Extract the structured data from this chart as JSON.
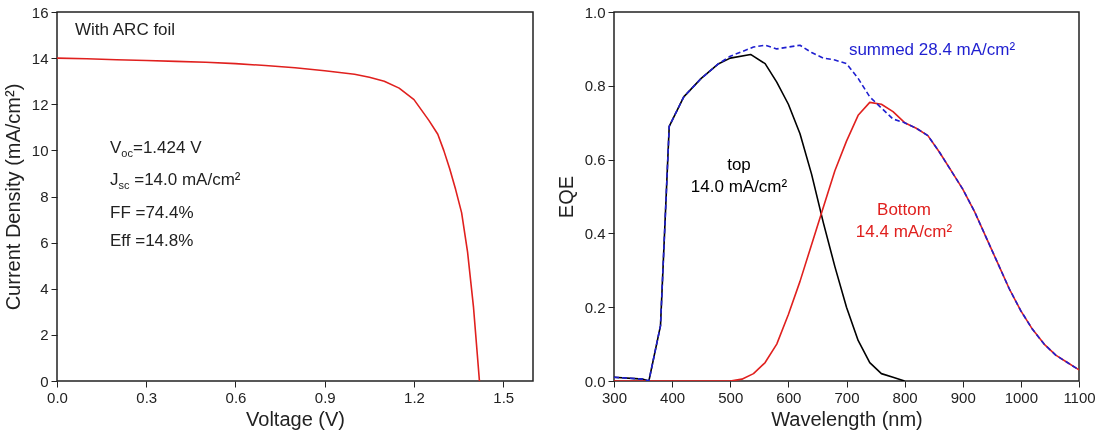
{
  "chart_data": [
    {
      "type": "line",
      "xlabel": "Voltage (V)",
      "ylabel": "Current Density (mA/cm²)",
      "xlim": [
        0,
        1.6
      ],
      "ylim": [
        0,
        16
      ],
      "xticks": [
        {
          "value": 0,
          "label": "0.0"
        },
        0.3,
        0.6,
        0.9,
        1.2,
        1.5
      ],
      "yticks": [
        0,
        2,
        4,
        6,
        8,
        10,
        12,
        14,
        16
      ],
      "annotations": [
        "With ARC foil",
        "V$_{oc}$=1.424 V",
        "J$_{sc}$ =14.0 mA/cm²",
        "FF =74.4%",
        "Eff =14.8%"
      ],
      "series": [
        {
          "color": "#e0201e",
          "x": [
            0,
            0.1,
            0.2,
            0.3,
            0.4,
            0.5,
            0.6,
            0.7,
            0.8,
            0.9,
            1.0,
            1.05,
            1.1,
            1.15,
            1.2,
            1.25,
            1.28,
            1.3,
            1.32,
            1.34,
            1.36,
            1.38,
            1.4,
            1.42
          ],
          "values": [
            14.0,
            13.97,
            13.93,
            13.9,
            13.86,
            13.82,
            13.76,
            13.68,
            13.58,
            13.45,
            13.3,
            13.17,
            13.0,
            12.7,
            12.2,
            11.3,
            10.7,
            10.0,
            9.2,
            8.3,
            7.3,
            5.6,
            3.2,
            0
          ]
        }
      ]
    },
    {
      "type": "line",
      "xlabel": "Wavelength (nm)",
      "ylabel": "EQE",
      "xlim": [
        300,
        1100
      ],
      "ylim": [
        0,
        1
      ],
      "xticks": [
        300,
        400,
        500,
        600,
        700,
        800,
        900,
        1000,
        1100
      ],
      "yticks": [
        {
          "value": 0,
          "label": "0.0"
        },
        0.2,
        0.4,
        0.6,
        0.8,
        {
          "value": 1,
          "label": "1.0"
        }
      ],
      "series": [
        {
          "name": "top\n14.0 mA/cm²",
          "color": "#000000",
          "x": [
            300,
            350,
            360,
            380,
            395,
            420,
            450,
            480,
            500,
            535,
            560,
            580,
            600,
            620,
            640,
            660,
            680,
            700,
            720,
            740,
            760,
            780,
            800
          ],
          "values": [
            0.01,
            0.005,
            0,
            0.15,
            0.69,
            0.77,
            0.82,
            0.86,
            0.875,
            0.885,
            0.86,
            0.81,
            0.75,
            0.67,
            0.56,
            0.43,
            0.31,
            0.2,
            0.11,
            0.05,
            0.02,
            0.01,
            0
          ]
        },
        {
          "name": "Bottom\n14.4 mA/cm²",
          "color": "#e0201e",
          "x": [
            300,
            500,
            520,
            540,
            560,
            580,
            600,
            620,
            640,
            660,
            680,
            700,
            720,
            740,
            760,
            780,
            800,
            820,
            840,
            860,
            880,
            900,
            920,
            940,
            960,
            980,
            1000,
            1020,
            1040,
            1060,
            1080,
            1100
          ],
          "values": [
            0,
            0,
            0.005,
            0.02,
            0.05,
            0.1,
            0.18,
            0.27,
            0.37,
            0.47,
            0.57,
            0.65,
            0.72,
            0.755,
            0.75,
            0.73,
            0.7,
            0.685,
            0.665,
            0.62,
            0.57,
            0.52,
            0.46,
            0.39,
            0.32,
            0.25,
            0.19,
            0.14,
            0.1,
            0.07,
            0.05,
            0.03
          ]
        },
        {
          "name": "summed 28.4 mA/cm²",
          "color": "#1f1fd0",
          "line_style": "dashed",
          "x": [
            300,
            350,
            360,
            380,
            395,
            420,
            450,
            480,
            500,
            540,
            560,
            580,
            600,
            620,
            640,
            660,
            680,
            700,
            720,
            740,
            760,
            780,
            800,
            820,
            840,
            860,
            880,
            900,
            920,
            940,
            960,
            980,
            1000,
            1020,
            1040,
            1060,
            1080,
            1100
          ],
          "values": [
            0.01,
            0.005,
            0,
            0.15,
            0.69,
            0.77,
            0.82,
            0.86,
            0.88,
            0.905,
            0.91,
            0.9,
            0.905,
            0.91,
            0.89,
            0.875,
            0.87,
            0.86,
            0.82,
            0.77,
            0.74,
            0.71,
            0.7,
            0.685,
            0.665,
            0.62,
            0.57,
            0.52,
            0.46,
            0.39,
            0.32,
            0.25,
            0.19,
            0.14,
            0.1,
            0.07,
            0.05,
            0.03
          ]
        }
      ]
    }
  ]
}
